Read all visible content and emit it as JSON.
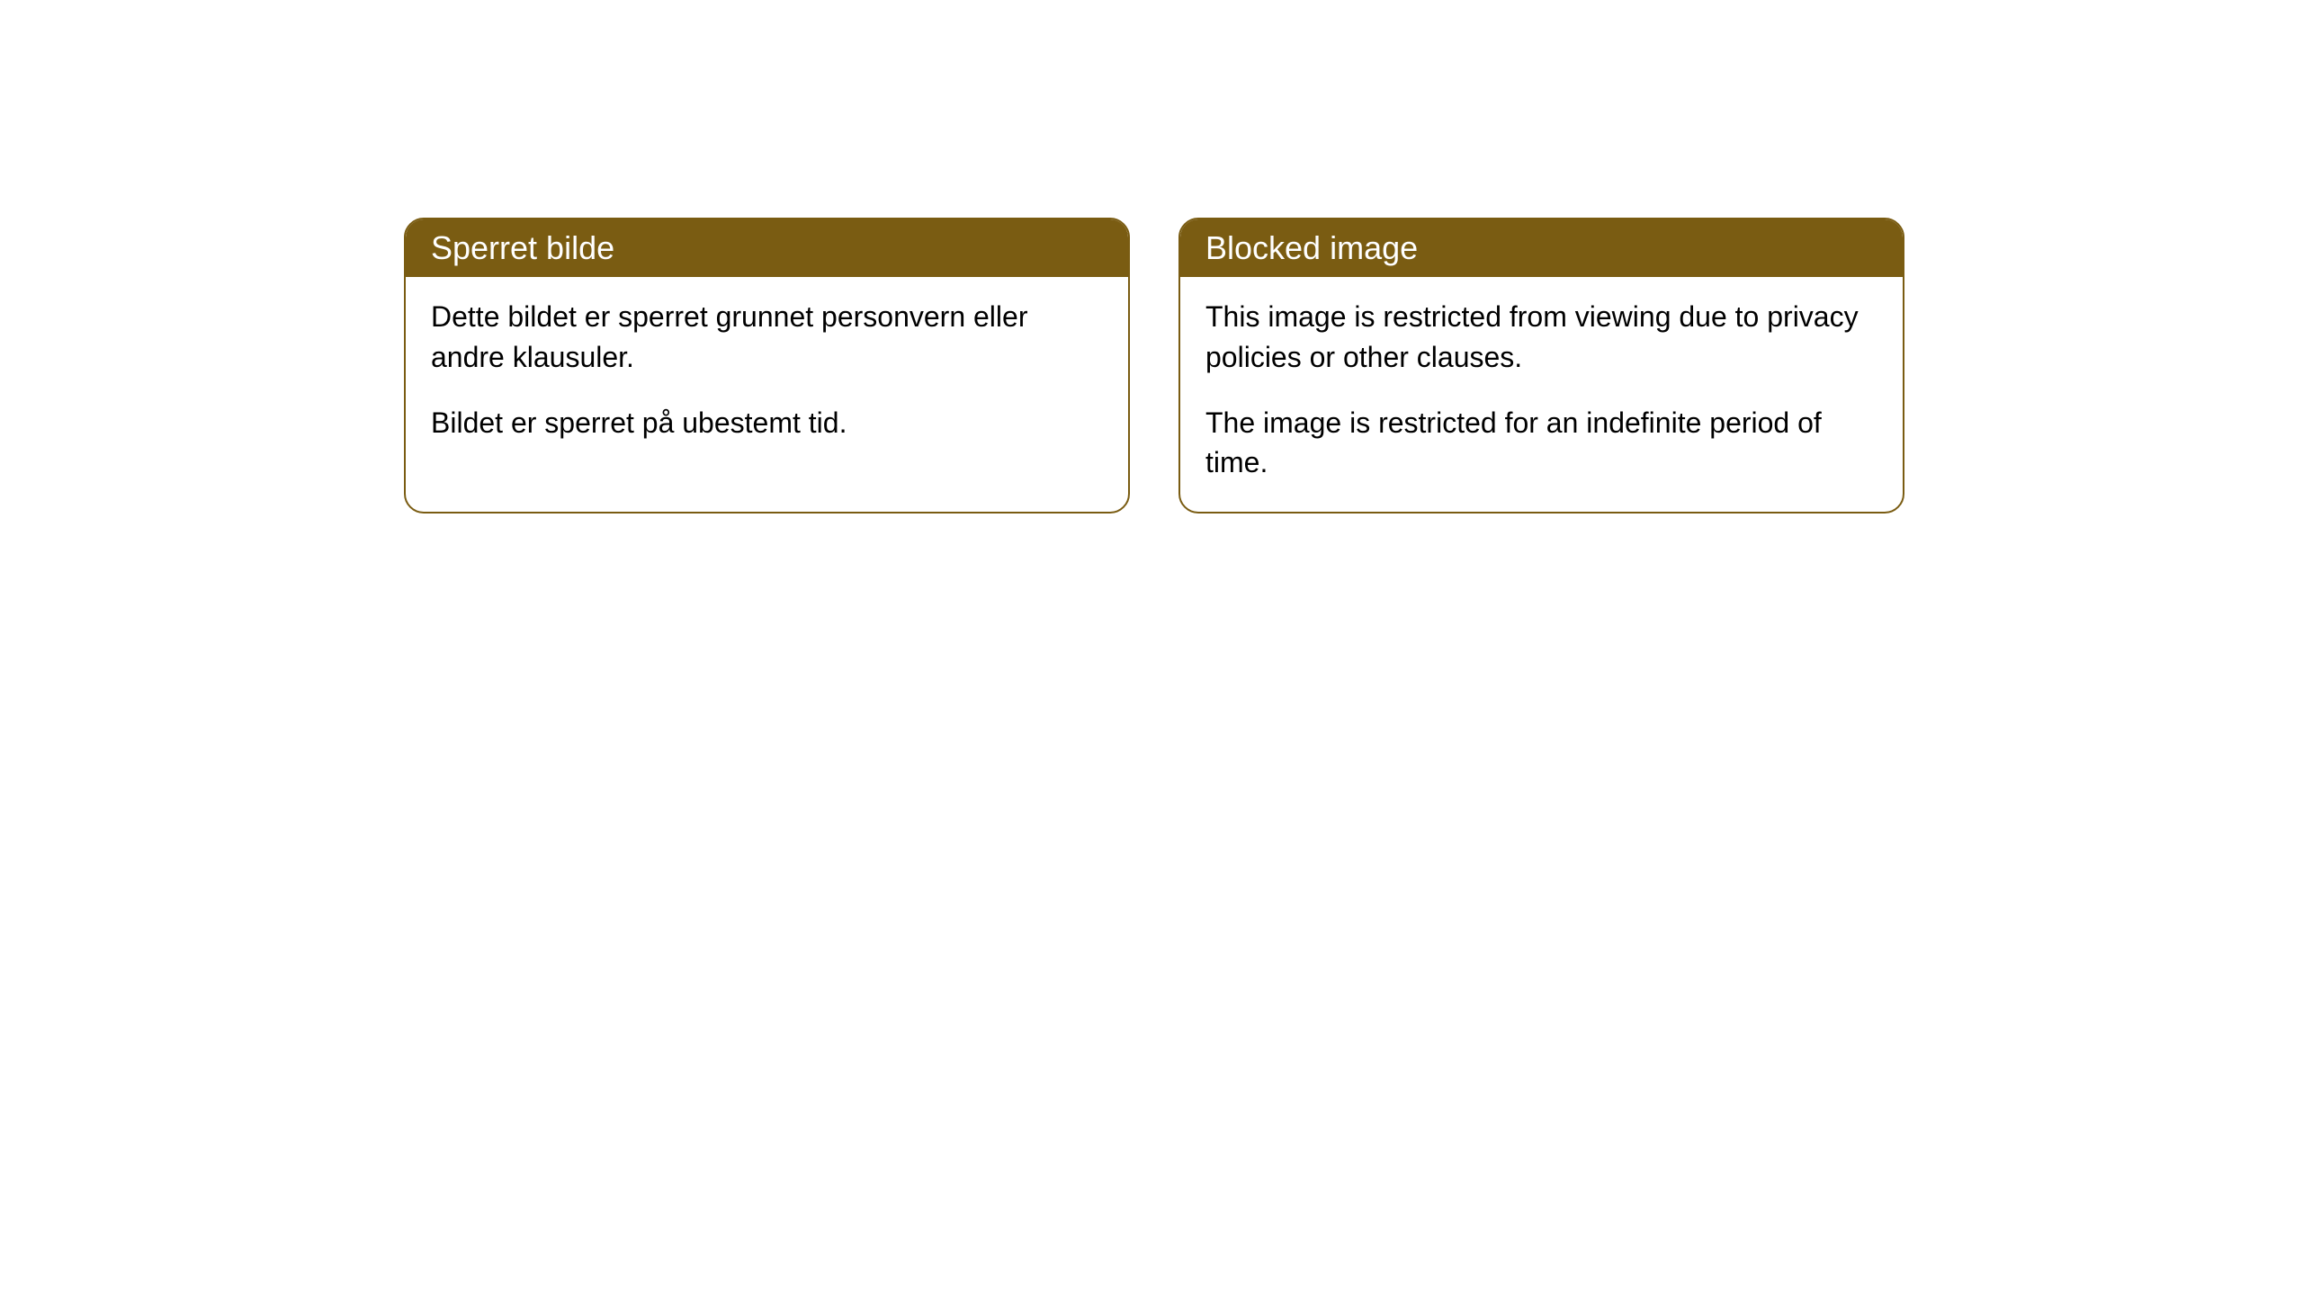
{
  "cards": [
    {
      "title": "Sperret bilde",
      "paragraph1": "Dette bildet er sperret grunnet personvern eller andre klausuler.",
      "paragraph2": "Bildet er sperret på ubestemt tid."
    },
    {
      "title": "Blocked image",
      "paragraph1": "This image is restricted from viewing due to privacy policies or other clauses.",
      "paragraph2": "The image is restricted for an indefinite period of time."
    }
  ],
  "colors": {
    "header_background": "#7a5c12",
    "header_text": "#ffffff",
    "body_background": "#ffffff",
    "body_text": "#000000",
    "border": "#7a5c12"
  }
}
